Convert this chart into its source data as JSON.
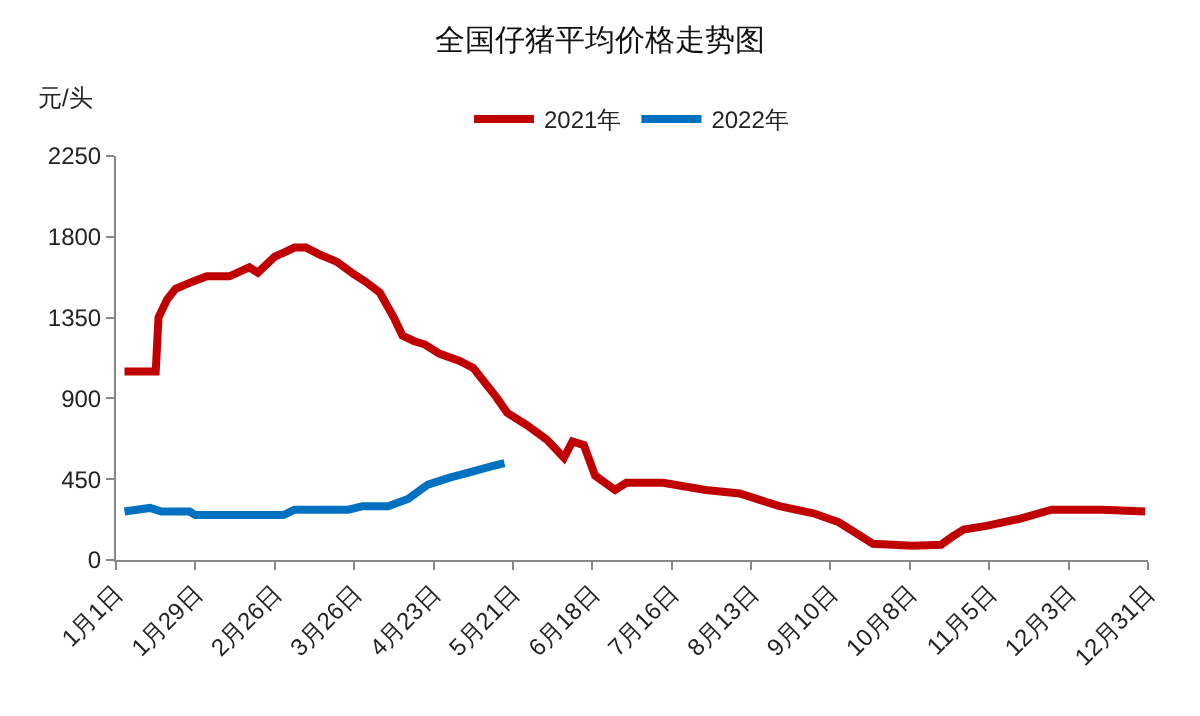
{
  "chart_data": {
    "type": "line",
    "title": "全国仔猪平均价格走势图",
    "ylabel": "元/头",
    "legend": "top",
    "grid": false,
    "marker": "none",
    "line_style": "solid",
    "ylim": [
      0,
      2250
    ],
    "yticks": [
      0,
      450,
      900,
      1350,
      1800,
      2250
    ],
    "xlim": [
      "--01-01",
      "--12-31"
    ],
    "xticks": [
      {
        "value": "--01-01",
        "label": "1月1日"
      },
      {
        "value": "--01-29",
        "label": "1月29日"
      },
      {
        "value": "--02-26",
        "label": "2月26日"
      },
      {
        "value": "--03-26",
        "label": "3月26日"
      },
      {
        "value": "--04-23",
        "label": "4月23日"
      },
      {
        "value": "--05-21",
        "label": "5月21日"
      },
      {
        "value": "--06-18",
        "label": "6月18日"
      },
      {
        "value": "--07-16",
        "label": "7月16日"
      },
      {
        "value": "--08-13",
        "label": "8月13日"
      },
      {
        "value": "--09-10",
        "label": "9月10日"
      },
      {
        "value": "--10-08",
        "label": "10月8日"
      },
      {
        "value": "--11-05",
        "label": "11月5日"
      },
      {
        "value": "--12-03",
        "label": "12月3日"
      },
      {
        "value": "--12-31",
        "label": "12月31日"
      }
    ],
    "series": [
      {
        "name": "2021年",
        "color": "#c00000",
        "x": [
          "--01-04",
          "--01-15",
          "--01-16",
          "--01-19",
          "--01-22",
          "--01-28",
          "--02-02",
          "--02-10",
          "--02-17",
          "--02-20",
          "--02-26",
          "--03-01",
          "--03-05",
          "--03-09",
          "--03-14",
          "--03-20",
          "--03-26",
          "--03-30",
          "--04-04",
          "--04-09",
          "--04-12",
          "--04-16",
          "--04-20",
          "--04-25",
          "--05-02",
          "--05-07",
          "--05-11",
          "--05-15",
          "--05-19",
          "--05-26",
          "--06-02",
          "--06-08",
          "--06-11",
          "--06-15",
          "--06-19",
          "--06-26",
          "--06-30",
          "--07-13",
          "--07-28",
          "--08-09",
          "--08-23",
          "--09-04",
          "--09-13",
          "--09-20",
          "--09-25",
          "--10-09",
          "--10-19",
          "--10-23",
          "--10-27",
          "--11-04",
          "--11-16",
          "--11-27",
          "--12-15",
          "--12-30"
        ],
        "values": [
          1050,
          1050,
          1350,
          1450,
          1510,
          1550,
          1580,
          1580,
          1630,
          1600,
          1690,
          1710,
          1740,
          1740,
          1700,
          1660,
          1590,
          1550,
          1490,
          1350,
          1250,
          1220,
          1200,
          1150,
          1110,
          1070,
          990,
          910,
          820,
          750,
          670,
          570,
          660,
          640,
          470,
          390,
          430,
          430,
          390,
          370,
          300,
          260,
          210,
          140,
          90,
          80,
          85,
          130,
          170,
          190,
          230,
          280,
          280,
          270
        ]
      },
      {
        "name": "2022年",
        "color": "#0070c0",
        "x": [
          "--01-04",
          "--01-13",
          "--01-17",
          "--01-27",
          "--01-29",
          "--03-01",
          "--03-05",
          "--03-24",
          "--03-29",
          "--04-07",
          "--04-14",
          "--04-21",
          "--04-29",
          "--05-06",
          "--05-13",
          "--05-18"
        ],
        "values": [
          270,
          290,
          270,
          270,
          250,
          250,
          280,
          280,
          300,
          300,
          340,
          420,
          460,
          490,
          520,
          540
        ]
      }
    ]
  }
}
